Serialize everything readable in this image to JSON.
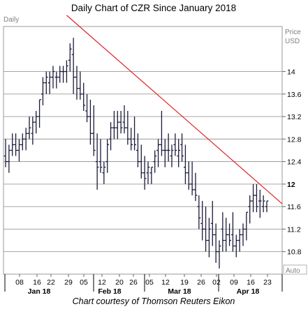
{
  "chart_data": {
    "type": "ohlc",
    "title": "Daily Chart of CZR Since January 2018",
    "caption": "Chart courtesy of Thomson Reuters Eikon",
    "panel_label": "Daily",
    "y_axis": {
      "title": "Price",
      "unit": "USD",
      "ticks": [
        10.8,
        11.2,
        11.6,
        12,
        12.4,
        12.8,
        13.2,
        13.6,
        14
      ],
      "tick_labels": [
        "10.8",
        "11.2",
        "11.6",
        "12",
        "12.4",
        "12.8",
        "13.2",
        "13.6",
        "14"
      ],
      "highlight_tick": "12",
      "ylim": [
        10.4,
        14.8
      ],
      "bottom_label": "Auto"
    },
    "x_axis": {
      "day_labels": [
        "08",
        "16",
        "22",
        "29",
        "05",
        "12",
        "20",
        "26",
        "05",
        "12",
        "19",
        "26",
        "02",
        "09",
        "16",
        "23"
      ],
      "month_labels": [
        "Jan 18",
        "Feb 18",
        "Mar 18",
        "Apr 18"
      ]
    },
    "grid": "horizontal",
    "trendline": {
      "color": "#e02020",
      "start": {
        "x": "2018-01-29",
        "y": 15.0
      },
      "end": {
        "x": "2018-04-27",
        "y": 11.65
      }
    },
    "bar_color": "#1a1a3a",
    "days": [
      "2018-01-02",
      "2018-01-03",
      "2018-01-04",
      "2018-01-05",
      "2018-01-08",
      "2018-01-09",
      "2018-01-10",
      "2018-01-11",
      "2018-01-12",
      "2018-01-16",
      "2018-01-17",
      "2018-01-18",
      "2018-01-19",
      "2018-01-22",
      "2018-01-23",
      "2018-01-24",
      "2018-01-25",
      "2018-01-26",
      "2018-01-29",
      "2018-01-30",
      "2018-01-31",
      "2018-02-01",
      "2018-02-02",
      "2018-02-05",
      "2018-02-06",
      "2018-02-07",
      "2018-02-08",
      "2018-02-09",
      "2018-02-12",
      "2018-02-13",
      "2018-02-14",
      "2018-02-15",
      "2018-02-16",
      "2018-02-20",
      "2018-02-21",
      "2018-02-22",
      "2018-02-23",
      "2018-02-26",
      "2018-02-27",
      "2018-02-28",
      "2018-03-01",
      "2018-03-02",
      "2018-03-05",
      "2018-03-06",
      "2018-03-07",
      "2018-03-08",
      "2018-03-09",
      "2018-03-12",
      "2018-03-13",
      "2018-03-14",
      "2018-03-15",
      "2018-03-16",
      "2018-03-19",
      "2018-03-20",
      "2018-03-21",
      "2018-03-22",
      "2018-03-23",
      "2018-03-26",
      "2018-03-27",
      "2018-03-28",
      "2018-03-29",
      "2018-04-02",
      "2018-04-03",
      "2018-04-04",
      "2018-04-05",
      "2018-04-06",
      "2018-04-09",
      "2018-04-10",
      "2018-04-11",
      "2018-04-12",
      "2018-04-13",
      "2018-04-16",
      "2018-04-17",
      "2018-04-18",
      "2018-04-19",
      "2018-04-20",
      "2018-04-23",
      "2018-04-24"
    ],
    "high": [
      12.8,
      12.7,
      12.9,
      12.9,
      12.8,
      12.9,
      13.0,
      13.2,
      13.2,
      13.3,
      13.5,
      13.9,
      14.0,
      14.0,
      14.1,
      14.0,
      14.1,
      14.1,
      14.2,
      14.5,
      14.6,
      14.1,
      14.0,
      13.8,
      13.6,
      13.5,
      13.4,
      12.9,
      12.8,
      12.4,
      12.8,
      13.1,
      13.3,
      13.3,
      13.3,
      13.4,
      13.3,
      13.0,
      13.2,
      12.9,
      12.7,
      12.5,
      12.4,
      12.3,
      12.6,
      12.8,
      13.3,
      12.8,
      12.9,
      12.7,
      12.9,
      12.8,
      12.9,
      12.7,
      12.4,
      12.4,
      12.2,
      11.8,
      11.7,
      11.6,
      11.4,
      11.7,
      11.3,
      11.0,
      11.5,
      11.4,
      11.3,
      11.5,
      11.1,
      11.2,
      11.3,
      11.5,
      11.8,
      12.0,
      12.0,
      11.9,
      11.8,
      11.7
    ],
    "low": [
      12.3,
      12.2,
      12.5,
      12.5,
      12.4,
      12.6,
      12.6,
      12.8,
      12.7,
      12.9,
      13.0,
      13.4,
      13.6,
      13.6,
      13.7,
      13.7,
      13.8,
      13.8,
      13.8,
      14.0,
      13.6,
      13.5,
      13.5,
      13.3,
      13.1,
      12.7,
      12.5,
      11.9,
      12.2,
      12.0,
      12.2,
      12.6,
      12.8,
      12.8,
      12.9,
      12.9,
      12.7,
      12.6,
      12.6,
      12.3,
      12.1,
      11.9,
      12.0,
      12.0,
      12.2,
      12.3,
      12.5,
      12.3,
      12.4,
      12.3,
      12.5,
      12.3,
      12.4,
      12.0,
      11.9,
      11.8,
      11.7,
      11.2,
      11.0,
      10.8,
      10.7,
      10.9,
      10.6,
      10.5,
      10.8,
      10.8,
      10.9,
      10.8,
      10.7,
      10.8,
      10.9,
      11.0,
      11.3,
      11.5,
      11.5,
      11.4,
      11.5,
      11.5
    ],
    "open": [
      12.5,
      12.4,
      12.6,
      12.7,
      12.6,
      12.7,
      12.8,
      12.9,
      12.9,
      13.1,
      13.2,
      13.6,
      13.8,
      13.8,
      13.9,
      13.9,
      13.9,
      14.0,
      14.0,
      14.2,
      14.3,
      13.9,
      13.7,
      13.6,
      13.3,
      13.2,
      12.9,
      12.4,
      12.4,
      12.2,
      12.4,
      12.8,
      13.0,
      13.0,
      13.1,
      13.1,
      13.0,
      12.8,
      12.8,
      12.6,
      12.4,
      12.2,
      12.2,
      12.2,
      12.4,
      12.6,
      12.7,
      12.6,
      12.6,
      12.5,
      12.7,
      12.5,
      12.7,
      12.3,
      12.2,
      12.0,
      11.9,
      11.6,
      11.3,
      11.2,
      11.0,
      11.3,
      11.1,
      10.8,
      11.2,
      11.0,
      11.1,
      11.1,
      10.9,
      11.0,
      11.1,
      11.2,
      11.6,
      11.7,
      11.8,
      11.7,
      11.6,
      11.6
    ],
    "close": [
      12.4,
      12.6,
      12.7,
      12.6,
      12.7,
      12.8,
      12.9,
      13.0,
      13.1,
      13.2,
      13.5,
      13.8,
      13.9,
      13.9,
      14.0,
      13.9,
      14.0,
      14.0,
      14.1,
      14.4,
      13.9,
      13.7,
      13.6,
      13.4,
      13.2,
      12.9,
      12.6,
      12.3,
      12.3,
      12.3,
      12.7,
      13.0,
      13.0,
      13.1,
      13.0,
      13.0,
      12.8,
      12.7,
      12.7,
      12.4,
      12.2,
      12.1,
      12.3,
      12.3,
      12.5,
      12.7,
      12.6,
      12.6,
      12.6,
      12.6,
      12.6,
      12.6,
      12.5,
      12.2,
      12.0,
      11.9,
      11.8,
      11.4,
      11.2,
      11.0,
      11.2,
      11.1,
      10.8,
      10.9,
      11.0,
      11.1,
      11.0,
      10.9,
      11.0,
      11.1,
      11.2,
      11.5,
      11.7,
      11.8,
      11.6,
      11.7,
      11.7,
      11.7
    ]
  }
}
